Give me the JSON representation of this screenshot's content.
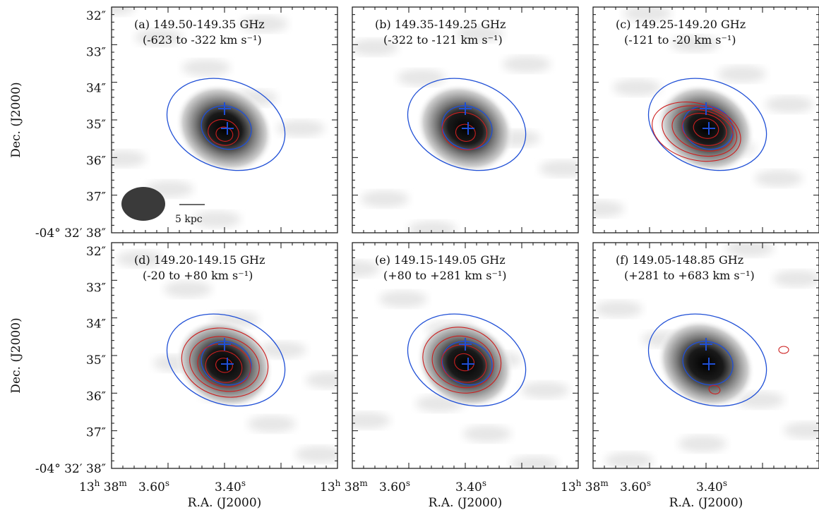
{
  "chart_data": {
    "type": "image",
    "x_axis_label": "R.A. (J2000)",
    "y_axis_label": "Dec. (J2000)",
    "x_ticks": [
      {
        "h": "13",
        "m": "38",
        "s": ""
      },
      {
        "s": "3.60"
      },
      {
        "s": "3.40"
      }
    ],
    "y_ticks": [
      "32″",
      "33″",
      "34″",
      "35″",
      "36″",
      "37″",
      "38″"
    ],
    "y_tick_prefix": "-04° 32′",
    "y_arcsec_values": [
      32,
      33,
      34,
      35,
      36,
      37,
      38
    ],
    "panels": [
      {
        "label": "(a) 149.50-149.35 GHz",
        "velocity": "(-623 to -322 km s⁻¹)",
        "contour_levels": 2,
        "extra_contour": false
      },
      {
        "label": "(b) 149.35-149.25 GHz",
        "velocity": "(-322 to -121 km s⁻¹)",
        "contour_levels": 2,
        "extra_contour": false
      },
      {
        "label": "(c) 149.25-149.20 GHz",
        "velocity": "(-121 to -20 km s⁻¹)",
        "contour_levels": 5,
        "extra_contour": false
      },
      {
        "label": "(d) 149.20-149.15 GHz",
        "velocity": "(-20 to +80 km s⁻¹)",
        "contour_levels": 4,
        "extra_contour": false
      },
      {
        "label": "(e) 149.15-149.05 GHz",
        "velocity": "(+80 to +281 km s⁻¹)",
        "contour_levels": 4,
        "extra_contour": false
      },
      {
        "label": "(f) 149.05-148.85 GHz",
        "velocity": "(+281 to +683 km s⁻¹)",
        "contour_levels": 1,
        "extra_contour": true
      }
    ],
    "scale_bar": "5 kpc",
    "colors": {
      "contours": "#cc1f1f",
      "ellipses": "#1f4fd6",
      "crosses": "#1f4fd6",
      "beam": "#3a3a3a"
    }
  }
}
